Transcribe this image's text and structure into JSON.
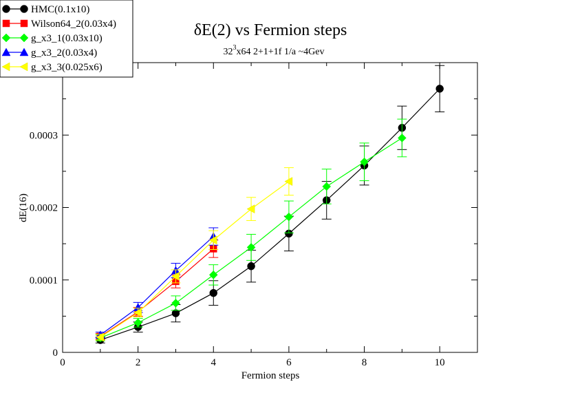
{
  "chart_data": {
    "type": "line",
    "title": "δE(2) vs Fermion steps",
    "subtitle": {
      "base": "32",
      "superscript": "3",
      "rest": "x64 2+1+1f 1/a ~4Gev"
    },
    "xlabel": "Fermion steps",
    "ylabel": "dE(16)",
    "xlim": [
      0,
      11
    ],
    "ylim": [
      0,
      0.0004
    ],
    "xticks": [
      {
        "value": 0,
        "label": "0"
      },
      {
        "value": 2,
        "label": "2"
      },
      {
        "value": 4,
        "label": "4"
      },
      {
        "value": 6,
        "label": "6"
      },
      {
        "value": 8,
        "label": "8"
      },
      {
        "value": 10,
        "label": "10"
      }
    ],
    "yticks": [
      {
        "value": 0,
        "label": "0"
      },
      {
        "value": 0.0001,
        "label": "0.0001"
      },
      {
        "value": 0.0002,
        "label": "0.0002"
      },
      {
        "value": 0.0003,
        "label": "0.0003"
      }
    ],
    "legend_position": "top-left",
    "series": [
      {
        "name": "HMC(0.1x10)",
        "color": "#000000",
        "marker": "circle",
        "x": [
          1,
          2,
          3,
          4,
          5,
          6,
          7,
          8,
          9,
          10
        ],
        "y": [
          1.7e-05,
          3.5e-05,
          5.4e-05,
          8.2e-05,
          0.000119,
          0.000164,
          0.00021,
          0.000258,
          0.00031,
          0.000364
        ],
        "err": [
          4e-06,
          7e-06,
          1.2e-05,
          1.7e-05,
          2.2e-05,
          2.4e-05,
          2.6e-05,
          2.7e-05,
          3e-05,
          3.2e-05
        ]
      },
      {
        "name": "Wilson64_2(0.03x4)",
        "color": "#ff0000",
        "marker": "square",
        "x": [
          1,
          2,
          3,
          4
        ],
        "y": [
          2.2e-05,
          5.6e-05,
          9.8e-05,
          0.000143
        ],
        "err": [
          4e-06,
          6e-06,
          9e-06,
          1.2e-05
        ]
      },
      {
        "name": "g_x3_1(0.03x10)",
        "color": "#00ff00",
        "marker": "diamond",
        "x": [
          1,
          2,
          3,
          4,
          5,
          6,
          7,
          8,
          9
        ],
        "y": [
          2e-05,
          4.1e-05,
          6.8e-05,
          0.000107,
          0.000145,
          0.000187,
          0.000229,
          0.000263,
          0.000296
        ],
        "err": [
          4e-06,
          6e-06,
          1e-05,
          1.4e-05,
          1.8e-05,
          2.2e-05,
          2.4e-05,
          2.6e-05,
          2.6e-05
        ]
      },
      {
        "name": "g_x3_2(0.03x4)",
        "color": "#0000ff",
        "marker": "triangle-up",
        "x": [
          1,
          2,
          3,
          4
        ],
        "y": [
          2.4e-05,
          6.2e-05,
          0.000113,
          0.00016
        ],
        "err": [
          4e-06,
          7e-06,
          1e-05,
          1.2e-05
        ]
      },
      {
        "name": "g_x3_3(0.025x6)",
        "color": "#ffff00",
        "marker": "triangle-left",
        "x": [
          1,
          2,
          3,
          4,
          5,
          6
        ],
        "y": [
          2.1e-05,
          5.5e-05,
          0.000105,
          0.000155,
          0.000198,
          0.000236
        ],
        "err": [
          4e-06,
          6e-06,
          9e-06,
          1.3e-05,
          1.6e-05,
          1.9e-05
        ]
      }
    ]
  }
}
